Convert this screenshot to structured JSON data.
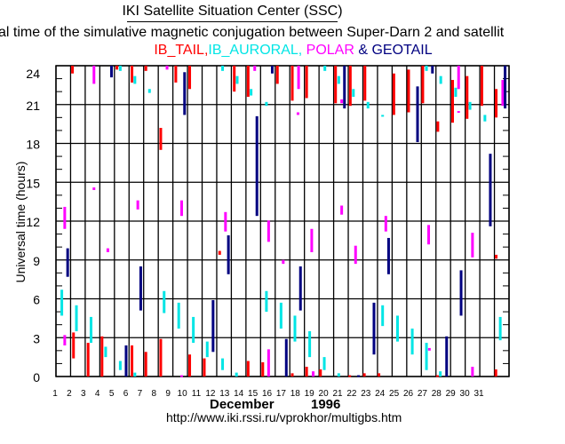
{
  "header": {
    "title": "IKI Satellite Situation Center (SSC)",
    "subtitle": "al time of the simulative magnetic conjugation between Super-Darn 2 and satellit",
    "legend": [
      {
        "label": "IB_TAIL,",
        "color": "#ff0000"
      },
      {
        "label": "IB_AURORAL,",
        "color": "#00e5e5"
      },
      {
        "label": "POLAR",
        "color": "#ff00ff"
      },
      {
        "label": "&",
        "color": "#000080"
      },
      {
        "label": "GEOTAIL",
        "color": "#000080"
      }
    ]
  },
  "footer": {
    "month": "December",
    "year": "1996",
    "url": "http://www.iki.rssi.ru/vprokhor/multigbs.htm"
  },
  "chart_data": {
    "type": "scatter",
    "title": "IKI Satellite Situation Center (SSC)",
    "xlabel": "December 1996",
    "ylabel": "Universal time (hours)",
    "xlim": [
      1,
      32
    ],
    "ylim": [
      0,
      24
    ],
    "xticks": [
      1,
      2,
      3,
      4,
      5,
      6,
      7,
      8,
      9,
      10,
      11,
      12,
      13,
      14,
      15,
      16,
      17,
      18,
      19,
      20,
      21,
      22,
      23,
      24,
      25,
      26,
      27,
      28,
      29,
      30,
      31
    ],
    "yticks": [
      0,
      3,
      6,
      9,
      12,
      15,
      18,
      21,
      24
    ],
    "grid": true,
    "series": [
      {
        "name": "IB_TAIL",
        "color": "#ff0000",
        "segments": [
          [
            2.13,
            23.4,
            24
          ],
          [
            6.2,
            22.7,
            24
          ],
          [
            7.15,
            23.6,
            24
          ],
          [
            9.2,
            22.7,
            24
          ],
          [
            10.15,
            22.2,
            24
          ],
          [
            13.2,
            22,
            24
          ],
          [
            14.15,
            21.6,
            24
          ],
          [
            16.15,
            22.6,
            24
          ],
          [
            5.17,
            23.7,
            24
          ],
          [
            8.17,
            17.5,
            19.2
          ],
          [
            12.2,
            9.4,
            9.7
          ],
          [
            2.2,
            1.4,
            3.4
          ],
          [
            3.2,
            0,
            2.6
          ],
          [
            4.15,
            0,
            3.1
          ],
          [
            6.2,
            0,
            2.4
          ],
          [
            7.15,
            0,
            1.9
          ],
          [
            8.17,
            0,
            2.9
          ],
          [
            10.15,
            0,
            1.7
          ],
          [
            11.15,
            0,
            1.4
          ],
          [
            14.15,
            0,
            1.2
          ],
          [
            15.15,
            0,
            1.1
          ],
          [
            17.17,
            21.3,
            24
          ],
          [
            18.15,
            21.5,
            24
          ],
          [
            20.13,
            21.1,
            24
          ],
          [
            21.14,
            20.9,
            24
          ],
          [
            22.14,
            21.3,
            24
          ],
          [
            24.12,
            20.2,
            23.4
          ],
          [
            25.13,
            20.4,
            23.7
          ],
          [
            26.1,
            21.1,
            24
          ],
          [
            27.13,
            18.9,
            19.7
          ],
          [
            28.14,
            19.6,
            22.9
          ],
          [
            29.13,
            19.9,
            23.2
          ],
          [
            30.14,
            20.9,
            24
          ],
          [
            31.12,
            20.0,
            22.2
          ],
          [
            31.12,
            9.1,
            9.4
          ],
          [
            17.17,
            0,
            0.25
          ],
          [
            18.15,
            0,
            0.75
          ],
          [
            19.1,
            0,
            0.55
          ],
          [
            21.1,
            0,
            0.1
          ],
          [
            22.1,
            0,
            0.25
          ],
          [
            23.1,
            0,
            0.25
          ],
          [
            27.1,
            0,
            0.1
          ],
          [
            31.1,
            0,
            0.55
          ]
        ]
      },
      {
        "name": "IB_AURORAL",
        "color": "#00e5e5",
        "segments": [
          [
            5.4,
            23.6,
            24
          ],
          [
            6.4,
            22.6,
            23.2
          ],
          [
            7.4,
            21.9,
            22.2
          ],
          [
            12.4,
            23.6,
            24
          ],
          [
            13.4,
            22.6,
            23.2
          ],
          [
            14.35,
            21.7,
            22.2
          ],
          [
            15.4,
            20.9,
            21.2
          ],
          [
            1.4,
            4.7,
            6.7
          ],
          [
            2.4,
            3.5,
            5.5
          ],
          [
            3.4,
            2.6,
            4.6
          ],
          [
            8.4,
            4.9,
            6.6
          ],
          [
            9.4,
            3.7,
            5.7
          ],
          [
            10.4,
            2.6,
            4.6
          ],
          [
            15.4,
            5.0,
            6.6
          ],
          [
            16.4,
            3.7,
            5.7
          ],
          [
            4.4,
            1.5,
            2.3
          ],
          [
            5.4,
            0.5,
            1.2
          ],
          [
            6.4,
            0,
            0.3
          ],
          [
            11.35,
            1.5,
            2.7
          ],
          [
            12.4,
            0.5,
            1.4
          ],
          [
            13.35,
            0,
            0.3
          ],
          [
            19.4,
            23.6,
            24
          ],
          [
            20.35,
            22.6,
            23.2
          ],
          [
            21.35,
            21.6,
            22.2
          ],
          [
            22.35,
            20.7,
            21.2
          ],
          [
            23.35,
            20.1,
            20.2
          ],
          [
            26.35,
            23.6,
            24
          ],
          [
            27.33,
            22.6,
            23.2
          ],
          [
            28.35,
            21.6,
            22.3
          ],
          [
            29.33,
            20.6,
            21.2
          ],
          [
            30.35,
            19.7,
            20.2
          ],
          [
            17.35,
            2.7,
            4.7
          ],
          [
            18.36,
            1.5,
            3.5
          ],
          [
            19.36,
            0.5,
            1.5
          ],
          [
            23.35,
            3.9,
            5.5
          ],
          [
            24.37,
            2.7,
            4.7
          ],
          [
            25.38,
            1.7,
            3.7
          ],
          [
            26.35,
            0.5,
            2.6
          ],
          [
            31.4,
            2.8,
            4.6
          ],
          [
            20.35,
            0,
            0.25
          ],
          [
            27.3,
            0,
            0.4
          ]
        ]
      },
      {
        "name": "POLAR",
        "color": "#ff00ff",
        "segments": [
          [
            3.6,
            22.6,
            24
          ],
          [
            8.6,
            23.7,
            24
          ],
          [
            14.6,
            23.6,
            24
          ],
          [
            3.6,
            14.4,
            14.6
          ],
          [
            1.6,
            11.4,
            13.1
          ],
          [
            6.6,
            12.9,
            13.6
          ],
          [
            9.6,
            12.4,
            13.6
          ],
          [
            12.6,
            11.2,
            12.7
          ],
          [
            15.55,
            10.4,
            12.05
          ],
          [
            4.55,
            9.6,
            9.9
          ],
          [
            16.55,
            8.7,
            9.0
          ],
          [
            1.6,
            2.4,
            3.2
          ],
          [
            9.6,
            0,
            0.1
          ],
          [
            15.55,
            0,
            2.1
          ],
          [
            17.6,
            22.2,
            24
          ],
          [
            17.56,
            20.2,
            20.4
          ],
          [
            20.55,
            21.1,
            21.4
          ],
          [
            28.55,
            22.2,
            24
          ],
          [
            28.55,
            20.4,
            20.5
          ],
          [
            31.57,
            20.9,
            22.9
          ],
          [
            20.55,
            12.5,
            13.2
          ],
          [
            23.57,
            11.2,
            12.4
          ],
          [
            26.5,
            10.2,
            11.7
          ],
          [
            18.5,
            9.6,
            11.4
          ],
          [
            21.5,
            8.7,
            10.1
          ],
          [
            29.5,
            9.2,
            11.1
          ],
          [
            26.55,
            2.0,
            2.2
          ],
          [
            18.6,
            0,
            0.4
          ],
          [
            29.5,
            0,
            0.75
          ]
        ]
      },
      {
        "name": "GEOTAIL",
        "color": "#000080",
        "segments": [
          [
            4.8,
            23.1,
            24
          ],
          [
            9.8,
            20.2,
            23.5
          ],
          [
            15.8,
            23.4,
            24
          ],
          [
            14.75,
            12.4,
            20.1
          ],
          [
            1.8,
            7.7,
            9.9
          ],
          [
            12.8,
            7.9,
            10.9
          ],
          [
            6.8,
            5.1,
            8.5
          ],
          [
            11.75,
            1.9,
            5.9
          ],
          [
            5.8,
            0,
            2.4
          ],
          [
            20.74,
            20.7,
            24
          ],
          [
            25.74,
            18.1,
            22.4
          ],
          [
            26.76,
            23.4,
            24
          ],
          [
            31.73,
            20.7,
            24
          ],
          [
            30.72,
            11.6,
            17.2
          ],
          [
            23.76,
            7.9,
            10.7
          ],
          [
            17.73,
            5.1,
            8.5
          ],
          [
            28.72,
            4.7,
            8.2
          ],
          [
            16.76,
            0,
            2.9
          ],
          [
            22.76,
            1.7,
            5.7
          ],
          [
            27.73,
            0,
            3.1
          ],
          [
            21.7,
            0,
            0.1
          ]
        ]
      }
    ]
  }
}
